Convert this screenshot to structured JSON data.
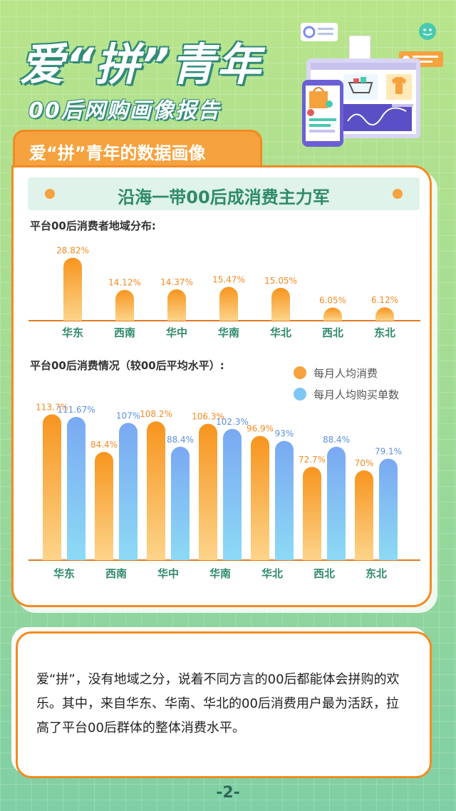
{
  "header": {
    "title": "爱“拼”青年",
    "subtitle": "00后网购画像报告"
  },
  "section": {
    "tab_label": "爱“拼”青年的数据画像",
    "banner": "沿海一带00后成消费主力军"
  },
  "colors": {
    "orange": "#f6a23e",
    "blue": "#7ec6f4",
    "green_text": "#2f8a6a",
    "orange_border": "#f38a22"
  },
  "icons": [
    "chat-bot-icon",
    "shopping-bag-icon",
    "cart-icon",
    "shirt-icon",
    "user-card-icon",
    "chart-card-icon"
  ],
  "chart_data": [
    {
      "type": "bar",
      "title": "平台00后消费者地域分布:",
      "categories": [
        "华东",
        "西南",
        "华中",
        "华南",
        "华北",
        "西北",
        "东北"
      ],
      "values": [
        28.82,
        14.12,
        14.37,
        15.47,
        15.05,
        6.05,
        6.12
      ],
      "value_labels": [
        "28.82%",
        "14.12%",
        "14.37%",
        "15.47%",
        "15.05%",
        "6.05%",
        "6.12%"
      ],
      "unit": "%",
      "ylim": [
        0,
        30
      ],
      "grid": false
    },
    {
      "type": "bar",
      "title": "平台00后消费情况（较00后平均水平）:",
      "categories": [
        "华东",
        "西南",
        "华中",
        "华南",
        "华北",
        "西北",
        "东北"
      ],
      "series": [
        {
          "name": "每月人均消费",
          "values": [
            113.7,
            84.4,
            108.2,
            106.3,
            96.9,
            72.7,
            70
          ],
          "labels": [
            "113.7%",
            "84.4%",
            "108.2%",
            "106.3%",
            "96.9%",
            "72.7%",
            "70%"
          ]
        },
        {
          "name": "每月人均购买单数",
          "values": [
            111.67,
            107,
            88.4,
            102.3,
            93,
            88.4,
            79.1
          ],
          "labels": [
            "111.67%",
            "107%",
            "88.4%",
            "102.3%",
            "93%",
            "88.4%",
            "79.1%"
          ]
        }
      ],
      "unit": "%",
      "ylim": [
        0,
        120
      ],
      "legend": "top-right",
      "grid": false
    }
  ],
  "text_card": {
    "body": "爱“拼”，没有地域之分，说着不同方言的00后都能体会拼购的欢乐。其中，来自华东、华南、华北的00后消费用户最为活跃，拉高了平台00后群体的整体消费水平。"
  },
  "footer": {
    "page_number": "-2-"
  }
}
